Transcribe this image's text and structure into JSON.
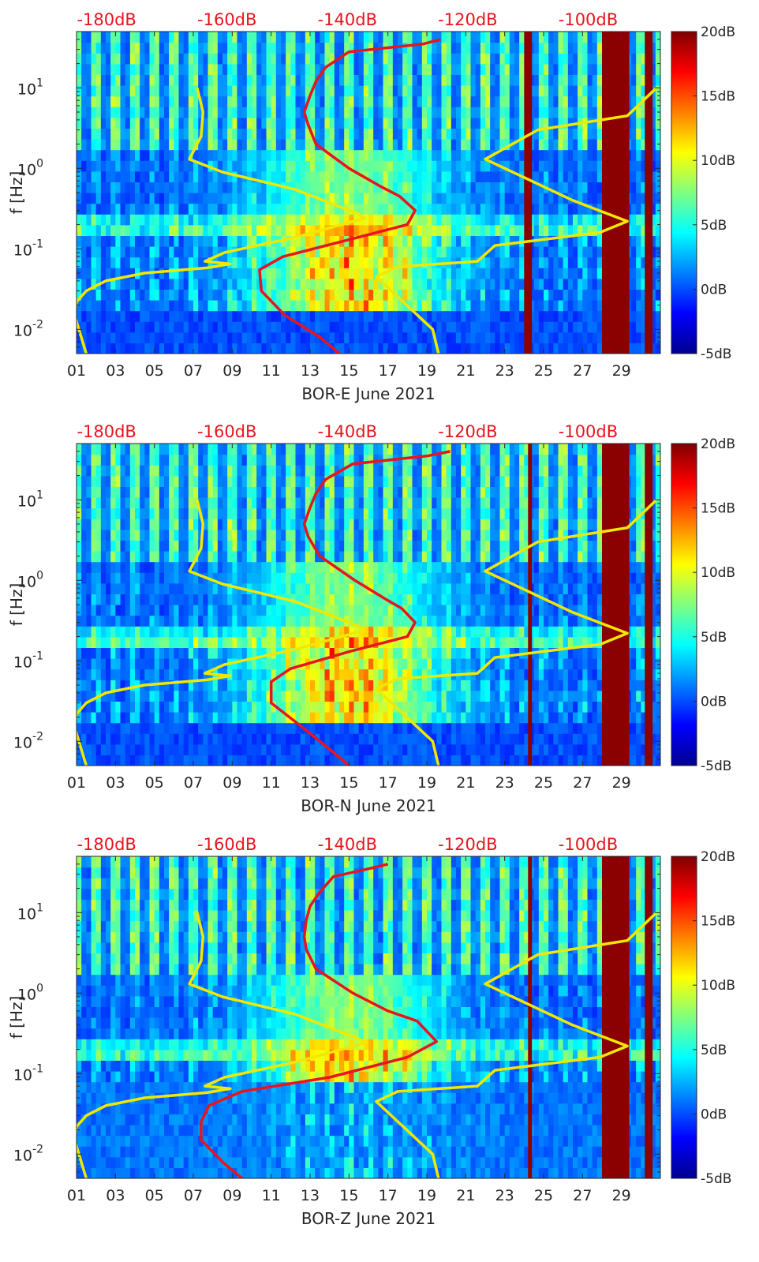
{
  "chart_data": [
    {
      "type": "heatmap",
      "xlabel": "BOR-E June 2021",
      "ylabel": "f [Hz]",
      "x_ticks": [
        "01",
        "03",
        "05",
        "07",
        "09",
        "11",
        "13",
        "15",
        "17",
        "19",
        "21",
        "23",
        "25",
        "27",
        "29"
      ],
      "x_range_days": [
        1,
        31
      ],
      "y_scale": "log",
      "y_range_hz": [
        0.005,
        50
      ],
      "y_ticks": [
        {
          "value": 0.01,
          "base": "10",
          "exp": "-2"
        },
        {
          "value": 0.1,
          "base": "10",
          "exp": "-1"
        },
        {
          "value": 1,
          "base": "10",
          "exp": "0"
        },
        {
          "value": 10,
          "base": "10",
          "exp": "1"
        }
      ],
      "top_axis_ticks": [
        "-180dB",
        "-160dB",
        "-140dB",
        "-120dB",
        "-100dB"
      ],
      "top_axis_range_db": [
        -185,
        -88
      ],
      "colorbar": {
        "ticks": [
          "20dB",
          "15dB",
          "10dB",
          "5dB",
          "0dB",
          "-5dB"
        ],
        "range_db": [
          -5,
          20
        ]
      },
      "high_level_bands_days": [
        [
          24,
          24.4
        ],
        [
          28,
          29.4
        ],
        [
          30.2,
          30.6
        ]
      ],
      "series": [
        {
          "color": "#f0e800",
          "points": [
            [
              7.2,
              10
            ],
            [
              7.5,
              5
            ],
            [
              7.4,
              2.5
            ],
            [
              6.8,
              1.3
            ],
            [
              8.5,
              0.9
            ],
            [
              12.2,
              0.55
            ],
            [
              15.5,
              0.27
            ],
            [
              15.8,
              0.24
            ],
            [
              12.3,
              0.14
            ],
            [
              8.6,
              0.09
            ],
            [
              7.6,
              0.07
            ],
            [
              8.9,
              0.065
            ],
            [
              7.7,
              0.058
            ],
            [
              4.5,
              0.05
            ],
            [
              2.5,
              0.04
            ],
            [
              1.5,
              0.03
            ],
            [
              1.0,
              0.022
            ],
            [
              0.9,
              0.015
            ],
            [
              1.5,
              0.005
            ]
          ]
        },
        {
          "color": "#f0e800",
          "points": [
            [
              30.8,
              10
            ],
            [
              29.3,
              4.5
            ],
            [
              24.7,
              3.0
            ],
            [
              22.0,
              1.3
            ],
            [
              26.5,
              0.4
            ],
            [
              29.3,
              0.22
            ],
            [
              27.9,
              0.16
            ],
            [
              22.5,
              0.11
            ],
            [
              21.6,
              0.07
            ],
            [
              17.5,
              0.06
            ],
            [
              16.4,
              0.045
            ],
            [
              19.3,
              0.01
            ],
            [
              19.6,
              0.005
            ]
          ]
        },
        {
          "color": "#e8141e",
          "points": [
            [
              19.7,
              40
            ],
            [
              18.8,
              35
            ],
            [
              15.0,
              28
            ],
            [
              13.8,
              18
            ],
            [
              13.3,
              12
            ],
            [
              13.0,
              8
            ],
            [
              12.7,
              5
            ],
            [
              12.9,
              3.5
            ],
            [
              13.3,
              2.0
            ],
            [
              15.0,
              1.0
            ],
            [
              16.6,
              0.6
            ],
            [
              17.6,
              0.45
            ],
            [
              18.4,
              0.3
            ],
            [
              18.0,
              0.2
            ],
            [
              15.0,
              0.13
            ],
            [
              11.6,
              0.08
            ],
            [
              10.4,
              0.055
            ],
            [
              10.5,
              0.03
            ],
            [
              11.7,
              0.015
            ],
            [
              13.5,
              0.008
            ],
            [
              14.5,
              0.005
            ]
          ]
        }
      ]
    },
    {
      "type": "heatmap",
      "xlabel": "BOR-N June 2021",
      "ylabel": "f [Hz]",
      "x_ticks": [
        "01",
        "03",
        "05",
        "07",
        "09",
        "11",
        "13",
        "15",
        "17",
        "19",
        "21",
        "23",
        "25",
        "27",
        "29"
      ],
      "x_range_days": [
        1,
        31
      ],
      "y_scale": "log",
      "y_range_hz": [
        0.005,
        50
      ],
      "y_ticks": [
        {
          "value": 0.01,
          "base": "10",
          "exp": "-2"
        },
        {
          "value": 0.1,
          "base": "10",
          "exp": "-1"
        },
        {
          "value": 1,
          "base": "10",
          "exp": "0"
        },
        {
          "value": 10,
          "base": "10",
          "exp": "1"
        }
      ],
      "top_axis_ticks": [
        "-180dB",
        "-160dB",
        "-140dB",
        "-120dB",
        "-100dB"
      ],
      "top_axis_range_db": [
        -185,
        -88
      ],
      "colorbar": {
        "ticks": [
          "20dB",
          "15dB",
          "10dB",
          "5dB",
          "0dB",
          "-5dB"
        ],
        "range_db": [
          -5,
          20
        ]
      },
      "high_level_bands_days": [
        [
          24.2,
          24.4
        ],
        [
          28,
          29.4
        ],
        [
          30.2,
          30.6
        ]
      ],
      "series": [
        {
          "color": "#f0e800",
          "points": [
            [
              7.2,
              10
            ],
            [
              7.5,
              5
            ],
            [
              7.4,
              2.5
            ],
            [
              6.8,
              1.3
            ],
            [
              8.5,
              0.9
            ],
            [
              12.2,
              0.55
            ],
            [
              15.5,
              0.27
            ],
            [
              15.8,
              0.24
            ],
            [
              12.3,
              0.14
            ],
            [
              8.6,
              0.09
            ],
            [
              7.6,
              0.07
            ],
            [
              8.9,
              0.065
            ],
            [
              7.7,
              0.058
            ],
            [
              4.5,
              0.05
            ],
            [
              2.5,
              0.04
            ],
            [
              1.5,
              0.03
            ],
            [
              1.0,
              0.022
            ],
            [
              0.9,
              0.015
            ],
            [
              1.5,
              0.005
            ]
          ]
        },
        {
          "color": "#f0e800",
          "points": [
            [
              30.8,
              10
            ],
            [
              29.3,
              4.5
            ],
            [
              24.7,
              3.0
            ],
            [
              22.0,
              1.3
            ],
            [
              26.5,
              0.4
            ],
            [
              29.3,
              0.22
            ],
            [
              27.9,
              0.16
            ],
            [
              22.5,
              0.11
            ],
            [
              21.6,
              0.07
            ],
            [
              17.5,
              0.06
            ],
            [
              16.4,
              0.045
            ],
            [
              19.3,
              0.01
            ],
            [
              19.6,
              0.005
            ]
          ]
        },
        {
          "color": "#e8141e",
          "points": [
            [
              20.2,
              40
            ],
            [
              19.0,
              35
            ],
            [
              15.2,
              28
            ],
            [
              13.8,
              18
            ],
            [
              13.3,
              12
            ],
            [
              13.0,
              8
            ],
            [
              12.7,
              5
            ],
            [
              12.9,
              3.5
            ],
            [
              13.5,
              2.0
            ],
            [
              15.3,
              1.0
            ],
            [
              16.8,
              0.6
            ],
            [
              17.7,
              0.45
            ],
            [
              18.4,
              0.3
            ],
            [
              18.0,
              0.2
            ],
            [
              15.0,
              0.13
            ],
            [
              12.0,
              0.08
            ],
            [
              11.0,
              0.055
            ],
            [
              11.0,
              0.03
            ],
            [
              12.6,
              0.015
            ],
            [
              14.0,
              0.008
            ],
            [
              15.0,
              0.005
            ]
          ]
        }
      ]
    },
    {
      "type": "heatmap",
      "xlabel": "BOR-Z June 2021",
      "ylabel": "f [Hz]",
      "x_ticks": [
        "01",
        "03",
        "05",
        "07",
        "09",
        "11",
        "13",
        "15",
        "17",
        "19",
        "21",
        "23",
        "25",
        "27",
        "29"
      ],
      "x_range_days": [
        1,
        31
      ],
      "y_scale": "log",
      "y_range_hz": [
        0.005,
        50
      ],
      "y_ticks": [
        {
          "value": 0.01,
          "base": "10",
          "exp": "-2"
        },
        {
          "value": 0.1,
          "base": "10",
          "exp": "-1"
        },
        {
          "value": 1,
          "base": "10",
          "exp": "0"
        },
        {
          "value": 10,
          "base": "10",
          "exp": "1"
        }
      ],
      "top_axis_ticks": [
        "-180dB",
        "-160dB",
        "-140dB",
        "-120dB",
        "-100dB"
      ],
      "top_axis_range_db": [
        -185,
        -88
      ],
      "colorbar": {
        "ticks": [
          "20dB",
          "15dB",
          "10dB",
          "5dB",
          "0dB",
          "-5dB"
        ],
        "range_db": [
          -5,
          20
        ]
      },
      "high_level_bands_days": [
        [
          24.2,
          24.4
        ],
        [
          28,
          29.4
        ],
        [
          30.2,
          30.6
        ]
      ],
      "series": [
        {
          "color": "#f0e800",
          "points": [
            [
              7.2,
              10
            ],
            [
              7.5,
              5
            ],
            [
              7.4,
              2.5
            ],
            [
              6.8,
              1.3
            ],
            [
              8.5,
              0.9
            ],
            [
              12.2,
              0.55
            ],
            [
              15.5,
              0.27
            ],
            [
              15.8,
              0.24
            ],
            [
              12.3,
              0.14
            ],
            [
              8.6,
              0.09
            ],
            [
              7.6,
              0.07
            ],
            [
              8.9,
              0.065
            ],
            [
              7.7,
              0.058
            ],
            [
              4.5,
              0.05
            ],
            [
              2.5,
              0.04
            ],
            [
              1.5,
              0.03
            ],
            [
              1.0,
              0.022
            ],
            [
              0.9,
              0.015
            ],
            [
              1.5,
              0.005
            ]
          ]
        },
        {
          "color": "#f0e800",
          "points": [
            [
              30.8,
              10
            ],
            [
              29.3,
              4.5
            ],
            [
              24.7,
              3.0
            ],
            [
              22.0,
              1.3
            ],
            [
              26.5,
              0.4
            ],
            [
              29.3,
              0.22
            ],
            [
              27.9,
              0.16
            ],
            [
              22.5,
              0.11
            ],
            [
              21.6,
              0.07
            ],
            [
              17.5,
              0.06
            ],
            [
              16.4,
              0.045
            ],
            [
              19.3,
              0.01
            ],
            [
              19.6,
              0.005
            ]
          ]
        },
        {
          "color": "#e8141e",
          "points": [
            [
              17.0,
              40
            ],
            [
              16.0,
              35
            ],
            [
              14.2,
              28
            ],
            [
              13.5,
              18
            ],
            [
              13.0,
              12
            ],
            [
              12.8,
              8
            ],
            [
              12.7,
              5
            ],
            [
              12.8,
              3.5
            ],
            [
              13.3,
              2.0
            ],
            [
              15.2,
              1.0
            ],
            [
              17.0,
              0.6
            ],
            [
              18.5,
              0.45
            ],
            [
              19.5,
              0.25
            ],
            [
              18.0,
              0.16
            ],
            [
              14.0,
              0.09
            ],
            [
              9.5,
              0.06
            ],
            [
              7.8,
              0.04
            ],
            [
              7.4,
              0.025
            ],
            [
              7.4,
              0.015
            ],
            [
              8.5,
              0.008
            ],
            [
              9.5,
              0.005
            ]
          ]
        }
      ]
    }
  ]
}
